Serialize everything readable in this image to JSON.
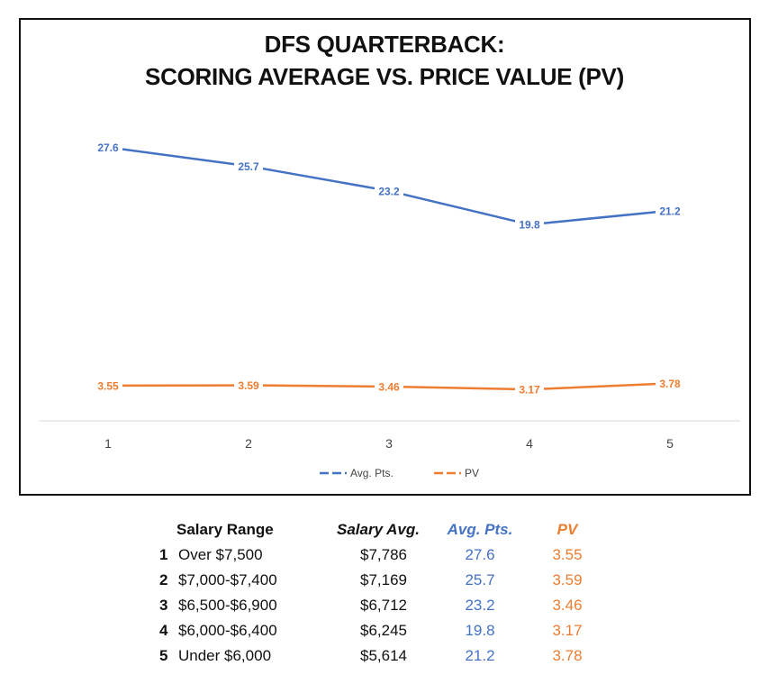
{
  "chart_data": {
    "type": "line",
    "title_lines": [
      "DFS QUARTERBACK:",
      "SCORING AVERAGE VS. PRICE VALUE (PV)"
    ],
    "x": [
      1,
      2,
      3,
      4,
      5
    ],
    "series": [
      {
        "name": "Avg. Pts.",
        "values": [
          27.6,
          25.7,
          23.2,
          19.8,
          21.2
        ],
        "labels": [
          "27.6",
          "25.7",
          "23.2",
          "19.8",
          "21.2"
        ],
        "color": "#4472C4"
      },
      {
        "name": "PV",
        "values": [
          3.55,
          3.59,
          3.46,
          3.17,
          3.78
        ],
        "labels": [
          "3.55",
          "3.59",
          "3.46",
          "3.17",
          "3.78"
        ],
        "color": "#ED7D31"
      }
    ],
    "ylim": [
      0,
      31
    ],
    "grid": false,
    "legend_position": "bottom"
  },
  "table": {
    "headers": {
      "range": "Salary Range",
      "salary": "Salary Avg.",
      "avg": "Avg. Pts.",
      "pv": "PV"
    },
    "header_colors": {
      "avg": "#4472C4",
      "pv": "#ED7D31"
    },
    "rows": [
      {
        "num": "1",
        "range": "Over $7,500",
        "salary": "$7,786",
        "avg": "27.6",
        "pv": "3.55"
      },
      {
        "num": "2",
        "range": "$7,000-$7,400",
        "salary": "$7,169",
        "avg": "25.7",
        "pv": "3.59"
      },
      {
        "num": "3",
        "range": "$6,500-$6,900",
        "salary": "$6,712",
        "avg": "23.2",
        "pv": "3.46"
      },
      {
        "num": "4",
        "range": "$6,000-$6,400",
        "salary": "$6,245",
        "avg": "19.8",
        "pv": "3.17"
      },
      {
        "num": "5",
        "range": "Under $6,000",
        "salary": "$5,614",
        "avg": "21.2",
        "pv": "3.78"
      }
    ]
  }
}
